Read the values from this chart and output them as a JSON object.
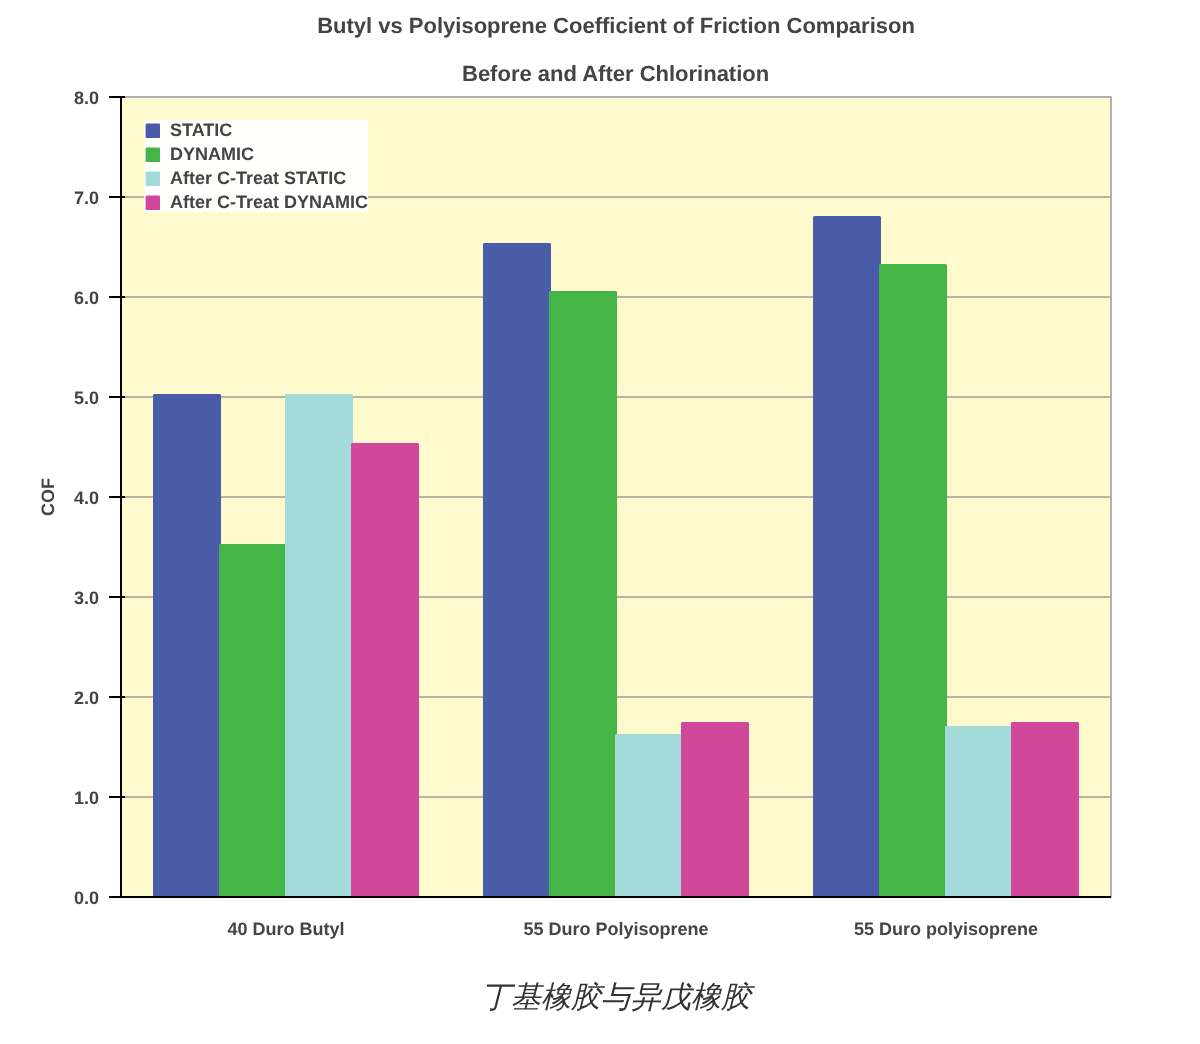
{
  "chart_data": {
    "type": "bar",
    "title": "Butyl vs Polyisoprene Coefficient of Friction Comparison",
    "subtitle": "Before and After Chlorination",
    "ylabel": "COF",
    "categories": [
      "40 Duro Butyl",
      "55 Duro Polyisoprene",
      "55 Duro polyisoprene"
    ],
    "series": [
      {
        "name": "STATIC",
        "color": "#4a5ba8",
        "values": [
          5.02,
          6.53,
          6.8
        ]
      },
      {
        "name": "DYNAMIC",
        "color": "#46b547",
        "values": [
          3.52,
          6.05,
          6.32
        ]
      },
      {
        "name": "After C-Treat STATIC",
        "color": "#a3dbdb",
        "values": [
          5.02,
          1.62,
          1.7
        ]
      },
      {
        "name": "After C-Treat DYNAMIC",
        "color": "#d1479a",
        "values": [
          4.53,
          1.74,
          1.74
        ]
      }
    ],
    "ylim": [
      0,
      8
    ],
    "yticks": [
      {
        "value": 0,
        "label": "0.0"
      },
      {
        "value": 1,
        "label": "1.0"
      },
      {
        "value": 2,
        "label": "2.0"
      },
      {
        "value": 3,
        "label": "3.0"
      },
      {
        "value": 4,
        "label": "4.0"
      },
      {
        "value": 5,
        "label": "5.0"
      },
      {
        "value": 6,
        "label": "6.0"
      },
      {
        "value": 7,
        "label": "7.0"
      },
      {
        "value": 8,
        "label": "8.0"
      }
    ],
    "grid": "y",
    "legend": "top left",
    "annotations": [
      "丁基橡胶与异戊橡胶"
    ]
  }
}
